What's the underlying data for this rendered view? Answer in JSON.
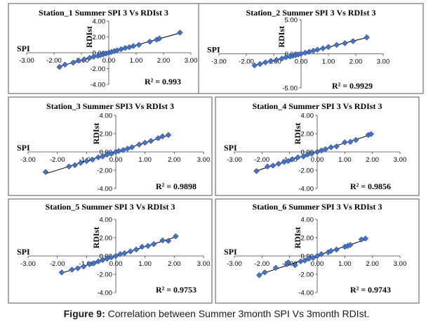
{
  "figure": {
    "caption_label": "Figure 9:",
    "caption_text": " Correlation between Summer 3month SPI Vs 3month RDIst."
  },
  "style": {
    "marker_color": "#4472C4",
    "marker_stroke": "#1F3864",
    "line_color": "#000000",
    "panel_border": "#555555"
  },
  "chart_data": [
    {
      "type": "scatter",
      "title": "Station_1 Summer SPI 3 Vs RDIst 3",
      "xlabel": "SPI",
      "ylabel": "RDIst",
      "xlim": [
        -3,
        3
      ],
      "ylim": [
        -4,
        4
      ],
      "xticks": [
        "-3.00",
        "-2.00",
        "-1.00",
        "0.00",
        "1.00",
        "2.00",
        "3.00"
      ],
      "yticks": [
        "-4.00",
        "-2.00",
        "0.00",
        "2.00",
        "4.00"
      ],
      "r2_label": "R² = 0.993",
      "trendline": true,
      "x": [
        -1.8,
        -1.6,
        -1.3,
        -1.1,
        -0.9,
        -0.7,
        -0.55,
        -0.4,
        -0.3,
        -0.2,
        -0.1,
        0.0,
        0.1,
        0.2,
        0.3,
        0.45,
        0.6,
        0.75,
        0.9,
        1.1,
        1.5,
        1.75,
        1.85,
        2.6
      ],
      "y": [
        -1.8,
        -1.5,
        -1.25,
        -1.0,
        -0.85,
        -0.65,
        -0.5,
        -0.4,
        -0.3,
        -0.2,
        -0.1,
        0.0,
        0.1,
        0.2,
        0.3,
        0.45,
        0.6,
        0.7,
        0.85,
        1.0,
        1.4,
        1.65,
        1.8,
        2.55
      ]
    },
    {
      "type": "scatter",
      "title": "Station_2 Summer SPI 3 Vs RDIst 3",
      "xlabel": "SPI",
      "ylabel": "RDIst",
      "xlim": [
        -3,
        3
      ],
      "ylim": [
        -5,
        5
      ],
      "xticks": [
        "-3.00",
        "-2.00",
        "-1.00",
        "0.00",
        "1.00",
        "2.00",
        "3.00"
      ],
      "yticks": [
        "-5.00",
        "0.00",
        "5.00"
      ],
      "r2_label": "R² = 0.9929",
      "trendline": true,
      "x": [
        -1.7,
        -1.5,
        -1.3,
        -1.1,
        -0.9,
        -0.7,
        -0.55,
        -0.4,
        -0.3,
        -0.2,
        -0.1,
        0.0,
        0.15,
        0.3,
        0.45,
        0.6,
        0.8,
        1.0,
        1.3,
        1.6,
        1.9,
        2.4
      ],
      "y": [
        -1.7,
        -1.5,
        -1.25,
        -1.05,
        -0.9,
        -0.7,
        -0.5,
        -0.4,
        -0.3,
        -0.2,
        -0.1,
        0.0,
        0.15,
        0.3,
        0.45,
        0.6,
        0.8,
        1.0,
        1.3,
        1.55,
        1.85,
        2.4
      ]
    },
    {
      "type": "scatter",
      "title": "Station_3 Summer SPI3 Vs RDIst 3",
      "xlabel": "SPI",
      "ylabel": "RDIst",
      "xlim": [
        -3,
        3
      ],
      "ylim": [
        -4,
        4
      ],
      "xticks": [
        "-3.00",
        "-2.00",
        "-1.00",
        "0.00",
        "1.00",
        "2.00",
        "3.00"
      ],
      "yticks": [
        "-4.00",
        "-2.00",
        "0.00",
        "2.00",
        "4.00"
      ],
      "r2_label": "R² = 0.9898",
      "trendline": true,
      "x": [
        -2.4,
        -1.6,
        -1.4,
        -1.2,
        -1.0,
        -0.8,
        -0.6,
        -0.45,
        -0.3,
        -0.15,
        0.0,
        0.1,
        0.25,
        0.4,
        0.55,
        0.8,
        1.0,
        1.2,
        1.45,
        1.6,
        1.8
      ],
      "y": [
        -2.2,
        -1.6,
        -1.45,
        -1.2,
        -1.0,
        -0.85,
        -0.6,
        -0.5,
        -0.3,
        -0.2,
        0.0,
        0.1,
        0.2,
        0.35,
        0.5,
        0.8,
        1.0,
        1.2,
        1.5,
        1.7,
        1.85
      ]
    },
    {
      "type": "scatter",
      "title": "Station_4 Summer SPI 3 Vs RDIst 3",
      "xlabel": "SPI",
      "ylabel": "RDIst",
      "xlim": [
        -3,
        3
      ],
      "ylim": [
        -4,
        4
      ],
      "xticks": [
        "-3.00",
        "-2.00",
        "-1.00",
        "0.00",
        "1.00",
        "2.00",
        "3.00"
      ],
      "yticks": [
        "-4.00",
        "-2.00",
        "0.00",
        "2.00",
        "4.00"
      ],
      "r2_label": "R² = 0.9856",
      "trendline": true,
      "x": [
        -2.2,
        -1.8,
        -1.6,
        -1.4,
        -1.2,
        -1.05,
        -0.9,
        -0.7,
        -0.5,
        -0.35,
        -0.2,
        0.0,
        0.15,
        0.3,
        0.5,
        0.7,
        1.0,
        1.2,
        1.4,
        1.85,
        1.95
      ],
      "y": [
        -2.1,
        -1.6,
        -1.5,
        -1.3,
        -1.1,
        -1.0,
        -0.8,
        -0.6,
        -0.5,
        -0.3,
        -0.2,
        0.0,
        0.15,
        0.3,
        0.5,
        0.6,
        1.05,
        1.1,
        1.3,
        1.85,
        1.95
      ]
    },
    {
      "type": "scatter",
      "title": "Station_5 Summer SPI 3 Vs RDIst 3",
      "xlabel": "SPI",
      "ylabel": "RDIst",
      "xlim": [
        -3,
        3
      ],
      "ylim": [
        -4,
        4
      ],
      "xticks": [
        "-3.00",
        "-2.00",
        "-1.00",
        "0.00",
        "1.00",
        "2.00",
        "3.00"
      ],
      "yticks": [
        "-4.00",
        "-2.00",
        "0.00",
        "2.00",
        "4.00"
      ],
      "r2_label": "R² = 0.9753",
      "trendline": true,
      "x": [
        -1.85,
        -1.5,
        -1.3,
        -1.1,
        -0.9,
        -0.75,
        -0.6,
        -0.45,
        -0.3,
        -0.15,
        0.0,
        0.15,
        0.3,
        0.5,
        0.7,
        0.9,
        1.1,
        1.3,
        1.6,
        1.8,
        2.05
      ],
      "y": [
        -1.8,
        -1.5,
        -1.35,
        -1.15,
        -0.9,
        -0.8,
        -0.6,
        -0.45,
        -0.3,
        -0.15,
        0.0,
        0.2,
        0.3,
        0.5,
        0.7,
        1.0,
        1.1,
        1.3,
        1.7,
        1.65,
        2.15
      ]
    },
    {
      "type": "scatter",
      "title": "Station_6 Summer SPI 3 Vs RDIst 3",
      "xlabel": "SPI",
      "ylabel": "RDIst",
      "xlim": [
        -3,
        3
      ],
      "ylim": [
        -4,
        4
      ],
      "xticks": [
        "-3.00",
        "-2.00",
        "-1.00",
        "0.00",
        "1.00",
        "2.00",
        "3.00"
      ],
      "yticks": [
        "-4.00",
        "-2.00",
        "0.00",
        "2.00",
        "4.00"
      ],
      "r2_label": "R² = 0.9743",
      "trendline": true,
      "x": [
        -2.1,
        -1.9,
        -1.5,
        -1.1,
        -1.05,
        -0.8,
        -0.6,
        -0.45,
        -0.3,
        -0.15,
        0.0,
        0.15,
        0.4,
        0.5,
        0.7,
        1.0,
        1.1,
        1.2,
        1.6,
        1.75
      ],
      "y": [
        -2.1,
        -1.8,
        -1.3,
        -0.9,
        -0.7,
        -1.0,
        -0.6,
        -0.5,
        -0.3,
        -0.2,
        0.0,
        0.2,
        0.4,
        0.55,
        0.7,
        1.0,
        1.1,
        1.2,
        1.8,
        1.9
      ]
    }
  ]
}
